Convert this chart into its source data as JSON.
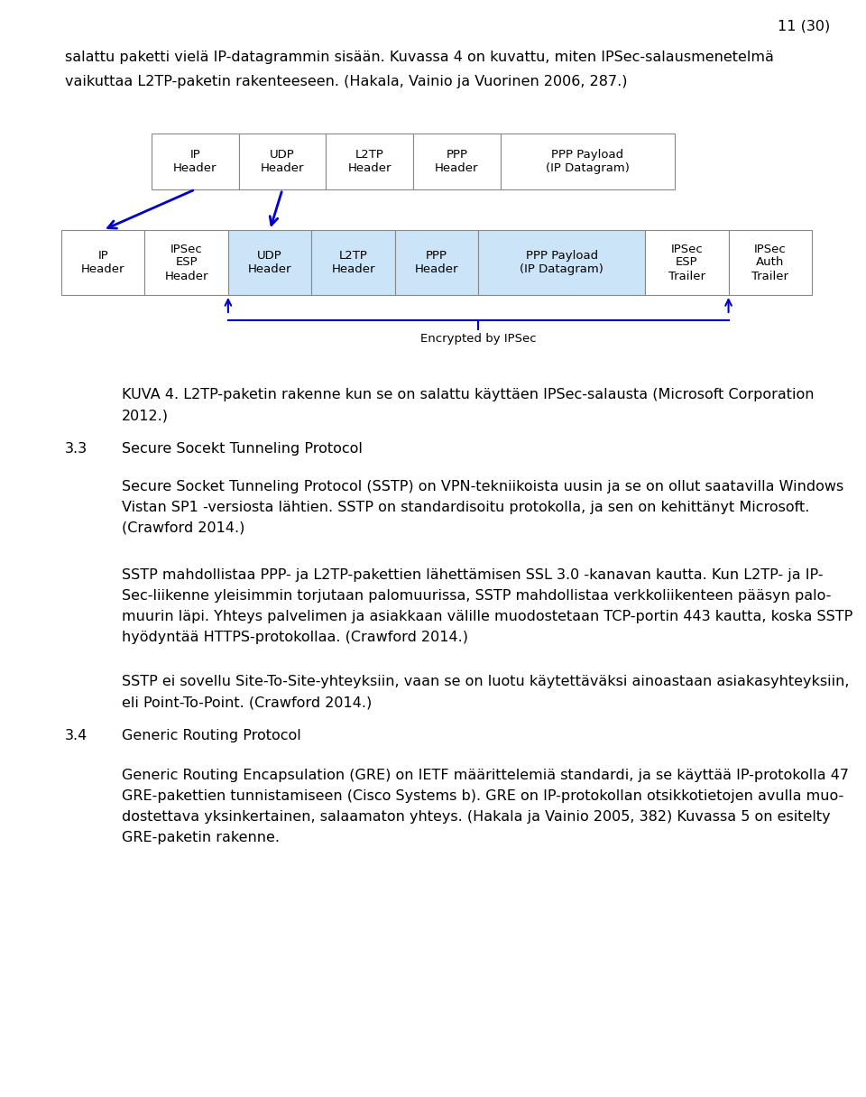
{
  "page_number": "11 (30)",
  "bg_color": "#ffffff",
  "text_color": "#000000",
  "intro_text_line1": "salattu paketti vielä IP-datagrammin sisään. Kuvassa 4 on kuvattu, miten IPSec-salausmenetelmä",
  "intro_text_line2": "vaikuttaa L2TP-paketin rakenteeseen. (Hakala, Vainio ja Vuorinen 2006, 287.)",
  "caption_text_line1": "KUVA 4. L2TP-paketin rakenne kun se on salattu käyttäen IPSec-salausta (Microsoft Corporation",
  "caption_text_line2": "2012.)",
  "section_33_heading": "3.3",
  "section_33_title": "Secure Socekt Tunneling Protocol",
  "para1_line1": "Secure Socket Tunneling Protocol (SSTP) on VPN-tekniikoista uusin ja se on ollut saatavilla Windows",
  "para1_line2": "Vistan SP1 -versiosta lähtien. SSTP on standardisoitu protokolla, ja sen on kehittänyt Microsoft.",
  "para1_line3": "(Crawford 2014.)",
  "para2_line1": "SSTP mahdollistaa PPP- ja L2TP-pakettien lähettämisen SSL 3.0 -kanavan kautta. Kun L2TP- ja IP-",
  "para2_line2": "Sec-liikenne yleisimmin torjutaan palomuurissa, SSTP mahdollistaa verkkoliikenteen pääsyn palo-",
  "para2_line3": "muurin läpi. Yhteys palvelimen ja asiakkaan välille muodostetaan TCP-portin 443 kautta, koska SSTP",
  "para2_line4": "hyödyntää HTTPS-protokollaa. (Crawford 2014.)",
  "para3_line1": "SSTP ei sovellu Site-To-Site-yhteyksiin, vaan se on luotu käytettäväksi ainoastaan asiakasyhteyksiin,",
  "para3_line2": "eli Point-To-Point. (Crawford 2014.)",
  "section_34_heading": "3.4",
  "section_34_title": "Generic Routing Protocol",
  "para4_line1": "Generic Routing Encapsulation (GRE) on IETF määrittelemiä standardi, ja se käyttää IP-protokolla 47",
  "para4_line2": "GRE-pakettien tunnistamiseen (Cisco Systems b). GRE on IP-protokollan otsikkotietojen avulla muo-",
  "para4_line3": "dostettava yksinkertainen, salaamaton yhteys. (Hakala ja Vainio 2005, 382) Kuvassa 5 on esitelty",
  "para4_line4": "GRE-paketin rakenne.",
  "diagram_arrow_color": "#0000cc",
  "diagram_blue_fill": "#cce4f7",
  "diagram_border_color": "#888888",
  "top_row_cells": [
    "IP\nHeader",
    "UDP\nHeader",
    "L2TP\nHeader",
    "PPP\nHeader",
    "PPP Payload\n(IP Datagram)"
  ],
  "top_row_widths": [
    1.0,
    1.0,
    1.0,
    1.0,
    2.0
  ],
  "bottom_row_cells": [
    "IP\nHeader",
    "IPSec\nESP\nHeader",
    "UDP\nHeader",
    "L2TP\nHeader",
    "PPP\nHeader",
    "PPP Payload\n(IP Datagram)",
    "IPSec\nESP\nTrailer",
    "IPSec\nAuth\nTrailer"
  ],
  "bottom_row_widths": [
    1.0,
    1.0,
    1.0,
    1.0,
    1.0,
    2.0,
    1.0,
    1.0
  ],
  "bottom_row_blue": [
    false,
    false,
    true,
    true,
    true,
    true,
    false,
    false
  ],
  "encrypted_label": "Encrypted by IPSec"
}
